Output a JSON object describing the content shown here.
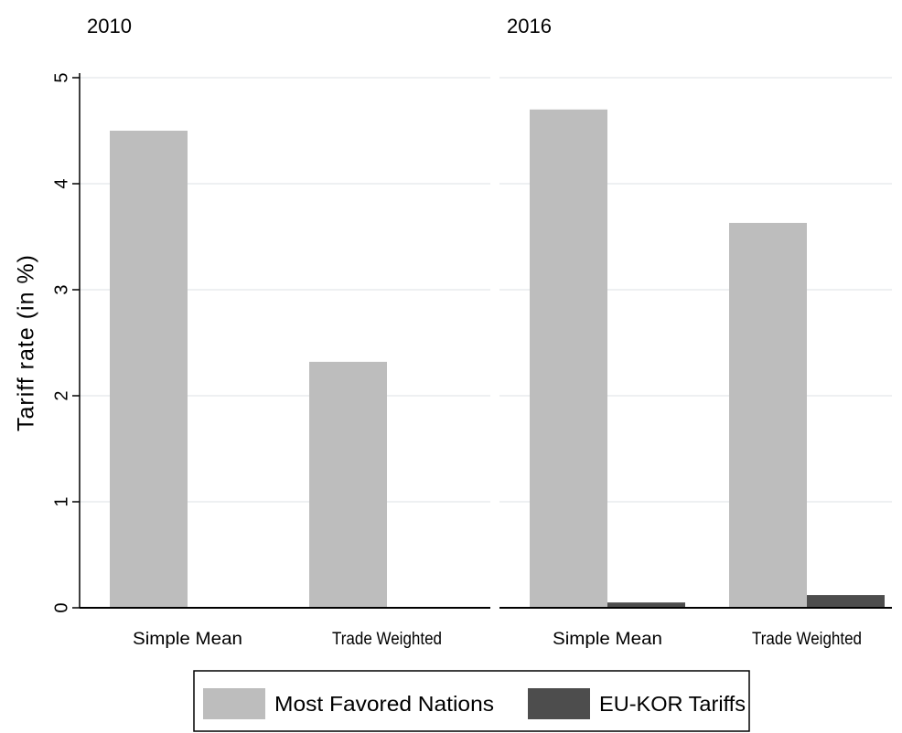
{
  "chart_data": [
    {
      "type": "bar",
      "title": "2010",
      "ylabel": "Tariff rate (in %)",
      "categories": [
        "Simple Mean",
        "Trade Weighted"
      ],
      "series": [
        {
          "name": "Most Favored Nations",
          "color": "#bdbdbd",
          "values": [
            4.5,
            2.32
          ]
        },
        {
          "name": "EU-KOR Tariffs",
          "color": "#4d4d4d",
          "values": [
            0,
            0
          ]
        }
      ],
      "ylim": [
        0,
        5
      ],
      "yticks": [
        0,
        1,
        2,
        3,
        4,
        5
      ],
      "grid": true
    },
    {
      "type": "bar",
      "title": "2016",
      "categories": [
        "Simple Mean",
        "Trade Weighted"
      ],
      "series": [
        {
          "values": [
            4.7,
            3.63
          ]
        },
        {
          "values": [
            0.05,
            0.12
          ]
        }
      ],
      "ylim": [
        0,
        5
      ],
      "yticks": [
        0,
        1,
        2,
        3,
        4,
        5
      ],
      "grid": true
    }
  ]
}
